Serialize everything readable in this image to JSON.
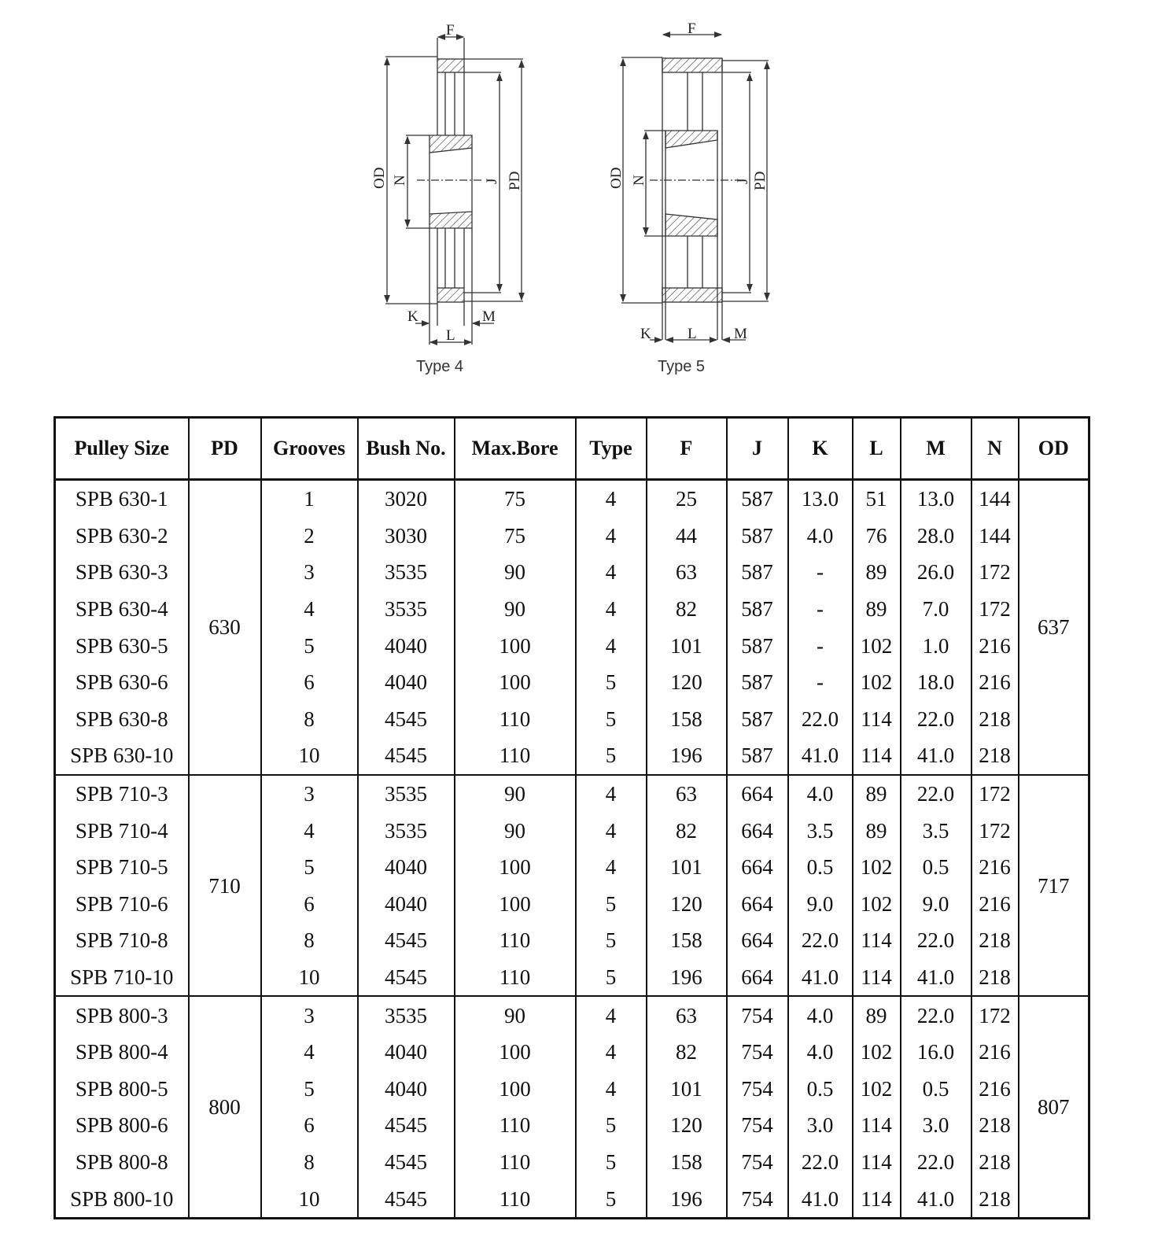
{
  "diagram": {
    "type4": {
      "caption": "Type 4",
      "labels": {
        "F": "F",
        "OD": "OD",
        "N": "N",
        "J": "J",
        "PD": "PD",
        "K": "K",
        "L": "L",
        "M": "M"
      }
    },
    "type5": {
      "caption": "Type 5",
      "labels": {
        "F": "F",
        "OD": "OD",
        "N": "N",
        "J": "J",
        "PD": "PD",
        "K": "K",
        "L": "L",
        "M": "M"
      }
    }
  },
  "table": {
    "columns": [
      "Pulley Size",
      "PD",
      "Grooves",
      "Bush No.",
      "Max.Bore",
      "Type",
      "F",
      "J",
      "K",
      "L",
      "M",
      "N",
      "OD"
    ],
    "groups": [
      {
        "pd": "630",
        "od": "637",
        "rows": [
          [
            "SPB 630-1",
            "1",
            "3020",
            "75",
            "4",
            "25",
            "587",
            "13.0",
            "51",
            "13.0",
            "144"
          ],
          [
            "SPB 630-2",
            "2",
            "3030",
            "75",
            "4",
            "44",
            "587",
            "4.0",
            "76",
            "28.0",
            "144"
          ],
          [
            "SPB 630-3",
            "3",
            "3535",
            "90",
            "4",
            "63",
            "587",
            "-",
            "89",
            "26.0",
            "172"
          ],
          [
            "SPB 630-4",
            "4",
            "3535",
            "90",
            "4",
            "82",
            "587",
            "-",
            "89",
            "7.0",
            "172"
          ],
          [
            "SPB 630-5",
            "5",
            "4040",
            "100",
            "4",
            "101",
            "587",
            "-",
            "102",
            "1.0",
            "216"
          ],
          [
            "SPB 630-6",
            "6",
            "4040",
            "100",
            "5",
            "120",
            "587",
            "-",
            "102",
            "18.0",
            "216"
          ],
          [
            "SPB 630-8",
            "8",
            "4545",
            "110",
            "5",
            "158",
            "587",
            "22.0",
            "114",
            "22.0",
            "218"
          ],
          [
            "SPB 630-10",
            "10",
            "4545",
            "110",
            "5",
            "196",
            "587",
            "41.0",
            "114",
            "41.0",
            "218"
          ]
        ]
      },
      {
        "pd": "710",
        "od": "717",
        "rows": [
          [
            "SPB 710-3",
            "3",
            "3535",
            "90",
            "4",
            "63",
            "664",
            "4.0",
            "89",
            "22.0",
            "172"
          ],
          [
            "SPB 710-4",
            "4",
            "3535",
            "90",
            "4",
            "82",
            "664",
            "3.5",
            "89",
            "3.5",
            "172"
          ],
          [
            "SPB 710-5",
            "5",
            "4040",
            "100",
            "4",
            "101",
            "664",
            "0.5",
            "102",
            "0.5",
            "216"
          ],
          [
            "SPB 710-6",
            "6",
            "4040",
            "100",
            "5",
            "120",
            "664",
            "9.0",
            "102",
            "9.0",
            "216"
          ],
          [
            "SPB 710-8",
            "8",
            "4545",
            "110",
            "5",
            "158",
            "664",
            "22.0",
            "114",
            "22.0",
            "218"
          ],
          [
            "SPB 710-10",
            "10",
            "4545",
            "110",
            "5",
            "196",
            "664",
            "41.0",
            "114",
            "41.0",
            "218"
          ]
        ]
      },
      {
        "pd": "800",
        "od": "807",
        "rows": [
          [
            "SPB 800-3",
            "3",
            "3535",
            "90",
            "4",
            "63",
            "754",
            "4.0",
            "89",
            "22.0",
            "172"
          ],
          [
            "SPB 800-4",
            "4",
            "4040",
            "100",
            "4",
            "82",
            "754",
            "4.0",
            "102",
            "16.0",
            "216"
          ],
          [
            "SPB 800-5",
            "5",
            "4040",
            "100",
            "4",
            "101",
            "754",
            "0.5",
            "102",
            "0.5",
            "216"
          ],
          [
            "SPB 800-6",
            "6",
            "4545",
            "110",
            "5",
            "120",
            "754",
            "3.0",
            "114",
            "3.0",
            "218"
          ],
          [
            "SPB 800-8",
            "8",
            "4545",
            "110",
            "5",
            "158",
            "754",
            "22.0",
            "114",
            "22.0",
            "218"
          ],
          [
            "SPB 800-10",
            "10",
            "4545",
            "110",
            "5",
            "196",
            "754",
            "41.0",
            "114",
            "41.0",
            "218"
          ]
        ]
      }
    ]
  }
}
